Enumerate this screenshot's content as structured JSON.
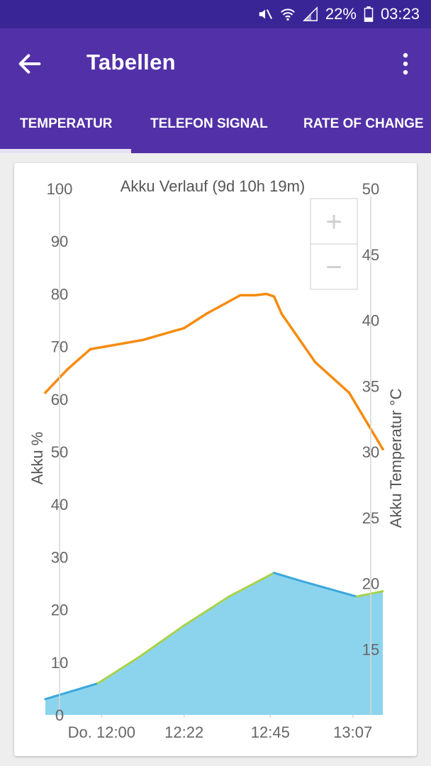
{
  "status_bar": {
    "battery_percent": "22%",
    "time": "03:23",
    "icons": [
      "mute-icon",
      "wifi-icon",
      "signal-icon",
      "battery-icon"
    ]
  },
  "app_bar": {
    "title": "Tabellen",
    "back_icon": "arrow-left-icon",
    "menu_icon": "more-vert-icon"
  },
  "tabs": [
    {
      "label": "TEMPERATUR",
      "selected": true
    },
    {
      "label": "TELEFON SIGNAL",
      "selected": false
    },
    {
      "label": "RATE OF CHANGE",
      "selected": false
    }
  ],
  "colors": {
    "status_bar": "#3a2596",
    "app_bar": "#5230a8",
    "temperature_line": "#f58b0e",
    "battery_fill": "#8cd4ee",
    "battery_line_discharge": "#3aa7dd",
    "battery_line_charge": "#a8d24a"
  },
  "zoom": {
    "in_label": "+",
    "out_label": "−"
  },
  "chart_data": {
    "type": "line",
    "title": "Akku Verlauf (9d 10h 19m)",
    "x_ticks": [
      "Do. 12:00",
      "12:22",
      "12:45",
      "13:07"
    ],
    "x_tick_minutes": [
      0,
      22,
      45,
      67
    ],
    "xlim_minutes": [
      -15,
      75
    ],
    "left_axis": {
      "label": "Akku %",
      "ticks": [
        0,
        10,
        20,
        30,
        40,
        50,
        60,
        70,
        80,
        90,
        100
      ],
      "ylim": [
        0,
        100
      ]
    },
    "right_axis": {
      "label": "Akku Temperatur °C",
      "ticks": [
        15,
        20,
        25,
        30,
        35,
        40,
        45,
        50
      ],
      "ylim": [
        10,
        50
      ]
    },
    "series": [
      {
        "axis": "right",
        "style": "line",
        "x": [
          -15,
          -9,
          -3,
          1,
          11,
          22,
          28,
          37,
          41,
          44,
          46,
          48,
          57,
          66,
          75
        ],
        "y": [
          34.5,
          36.3,
          37.8,
          38.0,
          38.5,
          39.4,
          40.5,
          41.9,
          41.9,
          42.0,
          41.8,
          40.5,
          36.8,
          34.5,
          30.2
        ]
      },
      {
        "axis": "left",
        "style": "area",
        "x": [
          -15,
          -8,
          -1,
          10,
          22,
          34,
          46,
          53,
          68,
          75
        ],
        "y": [
          3,
          4.5,
          6,
          11,
          17,
          22.5,
          27,
          25.5,
          22.5,
          23.5
        ]
      }
    ]
  }
}
